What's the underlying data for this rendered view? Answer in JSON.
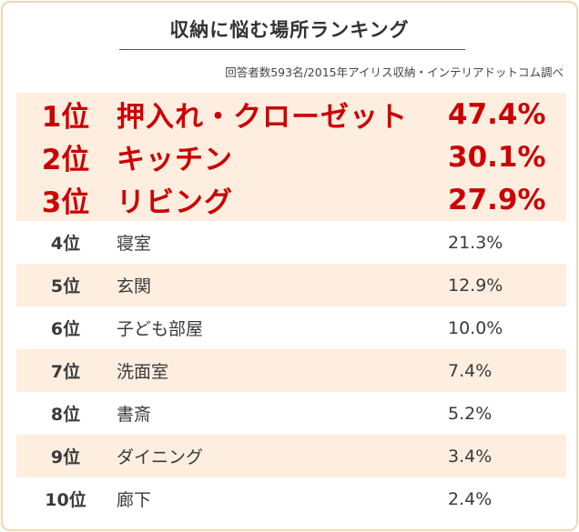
{
  "chart_data": {
    "type": "table",
    "title": "収納に悩む場所ランキング",
    "source_note": "回答者数593名/2015年アイリス収納・インテリアドットコム調べ",
    "colors": {
      "top_rank_text": "#cc0000",
      "shaded_row": "#fdeee0",
      "border": "#f3d6b4",
      "body_text": "#3a3a3a"
    },
    "rows": [
      {
        "rank": "1位",
        "place": "押入れ・クローゼット",
        "percent": "47.4%",
        "value": 47.4
      },
      {
        "rank": "2位",
        "place": "キッチン",
        "percent": "30.1%",
        "value": 30.1
      },
      {
        "rank": "3位",
        "place": "リビング",
        "percent": "27.9%",
        "value": 27.9
      },
      {
        "rank": "4位",
        "place": "寝室",
        "percent": "21.3%",
        "value": 21.3
      },
      {
        "rank": "5位",
        "place": "玄関",
        "percent": "12.9%",
        "value": 12.9
      },
      {
        "rank": "6位",
        "place": "子ども部屋",
        "percent": "10.0%",
        "value": 10.0
      },
      {
        "rank": "7位",
        "place": "洗面室",
        "percent": "7.4%",
        "value": 7.4
      },
      {
        "rank": "8位",
        "place": "書斎",
        "percent": "5.2%",
        "value": 5.2
      },
      {
        "rank": "9位",
        "place": "ダイニング",
        "percent": "3.4%",
        "value": 3.4
      },
      {
        "rank": "10位",
        "place": "廊下",
        "percent": "2.4%",
        "value": 2.4
      }
    ]
  }
}
